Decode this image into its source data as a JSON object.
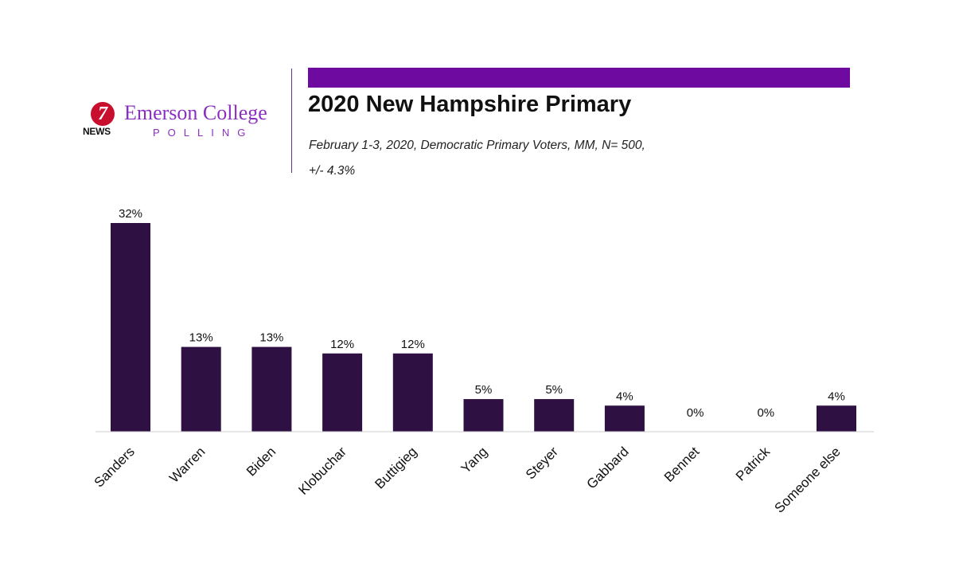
{
  "header": {
    "logo_seven": "7",
    "logo_news": "NEWS",
    "logo_name": "Emerson College",
    "logo_sub": "POLLING",
    "title": "2020 New Hampshire Primary",
    "subtitle_line1": "February 1-3, 2020, Democratic Primary Voters, MM,  N= 500,",
    "subtitle_line2": "+/- 4.3%"
  },
  "colors": {
    "bar": "#2e1042",
    "header_bar": "#6e0aa0",
    "brand_purple": "#8a2fbf"
  },
  "chart_data": {
    "type": "bar",
    "title": "2020 New Hampshire Primary",
    "categories": [
      "Sanders",
      "Warren",
      "Biden",
      "Klobuchar",
      "Buttigieg",
      "Yang",
      "Steyer",
      "Gabbard",
      "Bennet",
      "Patrick",
      "Someone else"
    ],
    "values": [
      32,
      13,
      13,
      12,
      12,
      5,
      5,
      4,
      0,
      0,
      4
    ],
    "value_labels": [
      "32%",
      "13%",
      "13%",
      "12%",
      "12%",
      "5%",
      "5%",
      "4%",
      "0%",
      "0%",
      "4%"
    ],
    "xlabel": "",
    "ylabel": "",
    "ylim": [
      0,
      32
    ],
    "grid": false,
    "legend": "none"
  }
}
